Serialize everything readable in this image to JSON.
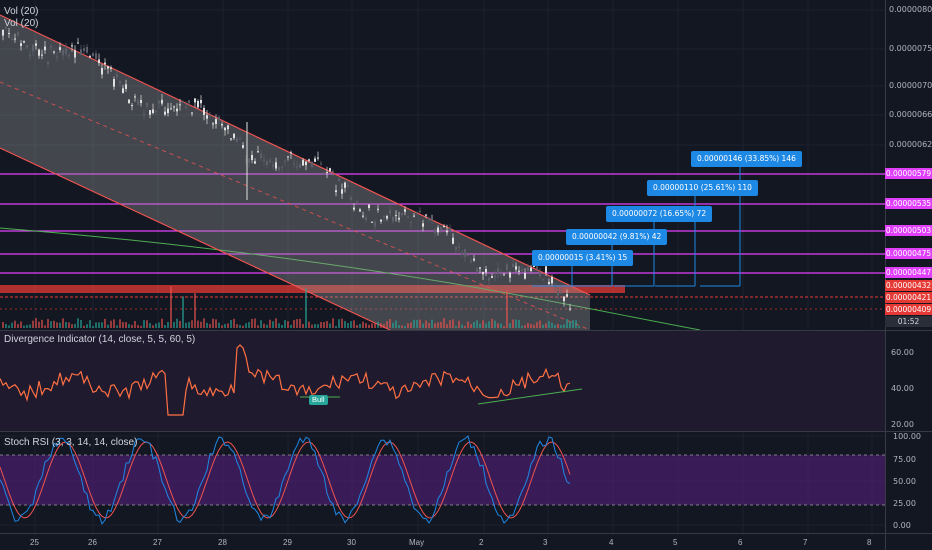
{
  "panes": {
    "main": {
      "labels": [
        "Vol (20)",
        "Vol (20)"
      ]
    },
    "divergence": {
      "label": "Divergence Indicator (14, close, 5, 5, 60, 5)",
      "ticks": [
        "60.00",
        "40.00",
        "20.00"
      ],
      "bull_label": "Bull"
    },
    "stoch": {
      "label": "Stoch RSI (3, 3, 14, 14, close)",
      "ticks": [
        "100.00",
        "75.00",
        "50.00",
        "25.00",
        "0.00"
      ]
    }
  },
  "price_axis": {
    "ticks": [
      "0.00000800",
      "0.00000750",
      "0.00000700",
      "0.00000660",
      "0.00000620"
    ],
    "tags": [
      {
        "text": "0.00000579",
        "style": "magenta"
      },
      {
        "text": "0.00000535",
        "style": "magenta"
      },
      {
        "text": "0.00000503",
        "style": "magenta"
      },
      {
        "text": "0.00000475",
        "style": "magenta"
      },
      {
        "text": "0.00000447",
        "style": "magenta"
      },
      {
        "text": "0.00000432",
        "style": "red"
      },
      {
        "text": "0.00000421",
        "style": "red"
      },
      {
        "text": "0.00000409",
        "style": "red"
      },
      {
        "text": "01:52",
        "style": "dark"
      }
    ]
  },
  "targets": [
    "0.00000015 (3.41%) 15",
    "0.00000042 (9.81%) 42",
    "0.00000072 (16.65%) 72",
    "0.00000110 (25.61%) 110",
    "0.00000146 (33.85%) 146"
  ],
  "time_axis": [
    "25",
    "26",
    "27",
    "28",
    "29",
    "30",
    "May",
    "2",
    "3",
    "4",
    "5",
    "6",
    "7",
    "8"
  ],
  "colors": {
    "background": "#131722",
    "channel": "#ef5350",
    "level_lines": "#e040fb",
    "resistance": "#e53935",
    "targets": "#1e88e5",
    "rsi_line": "#ff7043",
    "stoch_k": "#1e88e5",
    "stoch_d": "#ef5350",
    "stoch_band": "#4a1f6e"
  }
}
